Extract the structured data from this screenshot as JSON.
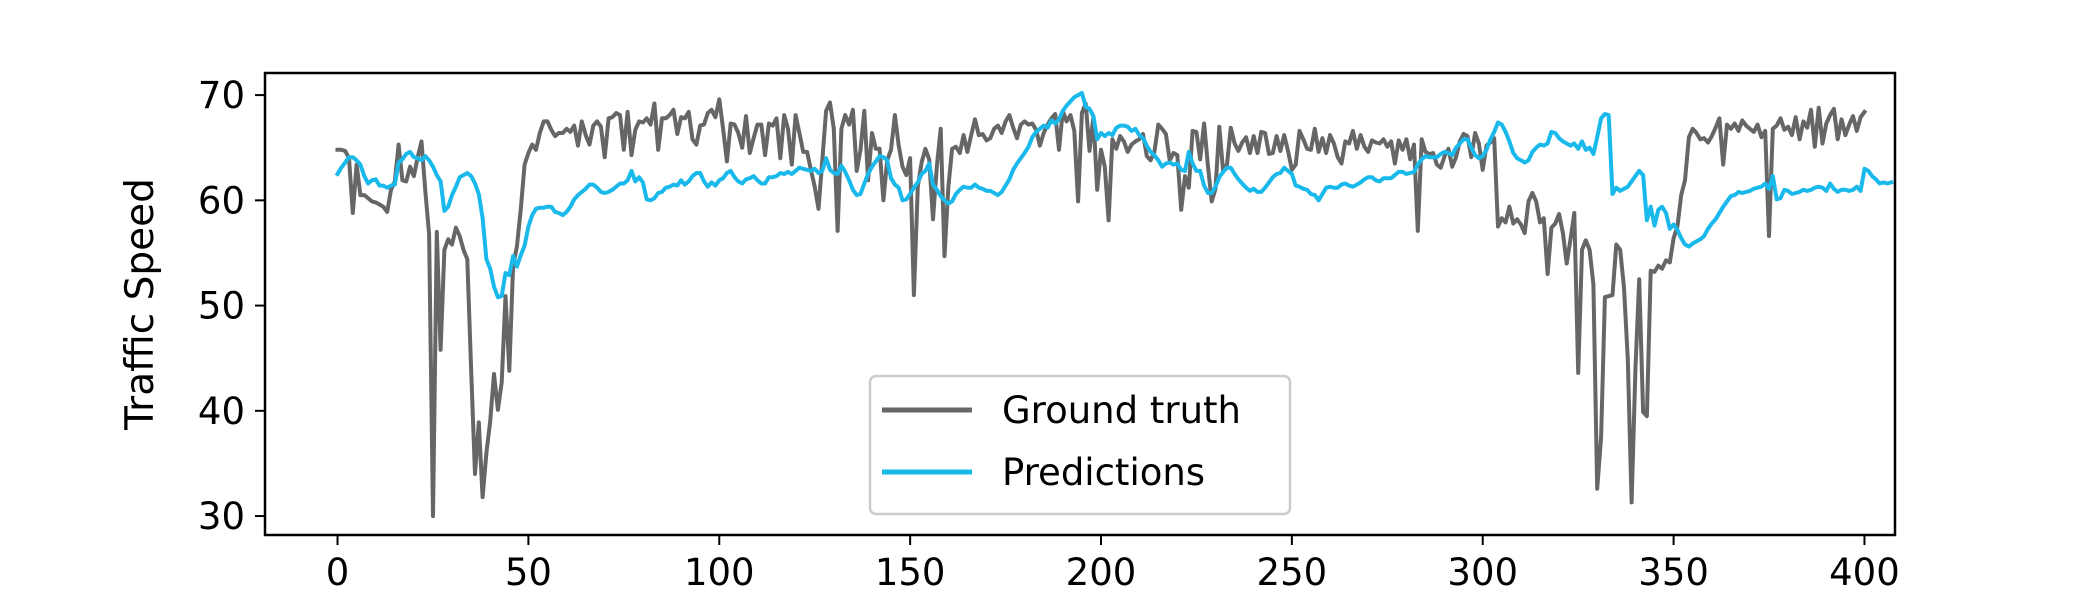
{
  "chart_data": {
    "type": "line",
    "title": "",
    "xlabel": "",
    "ylabel": "Traffic Speed",
    "xlim": [
      -19,
      408
    ],
    "ylim": [
      28.2,
      72.1
    ],
    "xticks": [
      0,
      50,
      100,
      150,
      200,
      250,
      300,
      350,
      400
    ],
    "yticks": [
      30,
      40,
      50,
      60,
      70
    ],
    "grid": false,
    "legend": {
      "position": "bottom-center",
      "entries": [
        "Ground truth",
        "Predictions"
      ]
    },
    "colors": {
      "Ground truth": "#666666",
      "Predictions": "#1ab9ec"
    },
    "x_step": 1,
    "series": [
      {
        "name": "Ground truth",
        "color": "#666666",
        "values": [
          64.8,
          64.8,
          64.7,
          64,
          58.8,
          63.4,
          60.5,
          60.5,
          60.2,
          59.9,
          59.8,
          59.6,
          59.4,
          58.9,
          61,
          61.8,
          65.3,
          61.9,
          61.8,
          63.2,
          62.3,
          64.1,
          65.6,
          60.9,
          56.8,
          30,
          57,
          45.8,
          55.3,
          56.3,
          55.8,
          57.4,
          56.6,
          55.3,
          54.4,
          44,
          34,
          38.9,
          31.8,
          36,
          39,
          43.5,
          40.1,
          42.7,
          50.9,
          43.8,
          53.8,
          55.6,
          59.2,
          63.4,
          64.5,
          65.3,
          64.8,
          66.4,
          67.5,
          67.5,
          66.7,
          66.1,
          66.4,
          66.4,
          66.8,
          66.5,
          67.1,
          65.2,
          67.5,
          66.2,
          65.3,
          67.1,
          67.5,
          67,
          64.1,
          67.8,
          67.9,
          68.3,
          68.1,
          64.8,
          68.4,
          64.3,
          66.7,
          67.5,
          67.4,
          67.8,
          67.2,
          69.2,
          64.8,
          67.8,
          67.8,
          68.1,
          68.6,
          66.3,
          67.9,
          67.8,
          68.4,
          65.8,
          65.3,
          67.1,
          67.2,
          68.3,
          68.6,
          67.9,
          69.6,
          66.8,
          63.7,
          67.3,
          67.2,
          66.4,
          65,
          68,
          64.5,
          65.9,
          67.2,
          67.2,
          64.3,
          67.3,
          67.1,
          67.8,
          64,
          68.1,
          66.8,
          63.4,
          68.1,
          66.4,
          64.6,
          64.6,
          62.9,
          61.3,
          59.2,
          63.8,
          68.5,
          69.3,
          66.8,
          57.1,
          66.8,
          68.1,
          67.2,
          68.6,
          62.8,
          64.8,
          68.5,
          61.9,
          66.4,
          64.9,
          64.9,
          60,
          63.8,
          64.8,
          68.1,
          65.2,
          63.2,
          62.4,
          64,
          51,
          61.3,
          63.6,
          64.9,
          63.9,
          58.2,
          63.3,
          66.8,
          54.7,
          61.2,
          64.9,
          65.1,
          64.5,
          66.2,
          64.6,
          66.2,
          67.7,
          66.2,
          66.3,
          65.7,
          65.9,
          66.8,
          67.1,
          66.4,
          67.5,
          68.1,
          66.9,
          65.9,
          67.2,
          67.5,
          67.2,
          67.3,
          66.7,
          65.2,
          66.4,
          67.2,
          67.8,
          68.2,
          64.8,
          68.5,
          67.5,
          68.1,
          66.6,
          59.9,
          68.3,
          69.2,
          64.7,
          67.9,
          61,
          64.8,
          63.2,
          58.1,
          65.8,
          64.9,
          66.1,
          65.6,
          64.6,
          65.3,
          65.6,
          65.8,
          66.3,
          64.2,
          63.8,
          64.6,
          67.2,
          66.8,
          66.3,
          63.8,
          64.5,
          64.3,
          59.1,
          62.3,
          61.2,
          66.6,
          66.5,
          63.9,
          67.3,
          63.3,
          59.9,
          61.1,
          67,
          62.8,
          63.4,
          66.9,
          65.4,
          64.7,
          65.5,
          66,
          64.5,
          66.1,
          64.5,
          66.5,
          66.4,
          64.4,
          64.5,
          66.1,
          64.7,
          66.2,
          64.7,
          62.9,
          63.4,
          66.6,
          65.8,
          64.9,
          64.8,
          66.8,
          64.6,
          65.9,
          64.5,
          66.2,
          65.4,
          64.1,
          63.5,
          65.6,
          65.4,
          66.6,
          64.9,
          66.2,
          65.1,
          64.6,
          65.7,
          65.5,
          65.4,
          65.8,
          65.1,
          65.6,
          63.5,
          65.7,
          64.8,
          65.8,
          63.9,
          65.3,
          57.1,
          65.8,
          64.6,
          64.4,
          64.5,
          63.4,
          63.1,
          64.2,
          64.9,
          63.2,
          64.1,
          65.6,
          66.3,
          66.1,
          64.1,
          66.4,
          65.4,
          62.9,
          65.2,
          65.5,
          65.9,
          57.5,
          58.3,
          57.9,
          59.4,
          57.8,
          58.2,
          57.7,
          56.9,
          59.9,
          60.7,
          59.9,
          57.9,
          58.3,
          53,
          57.4,
          57.8,
          58.7,
          56.9,
          54,
          56.3,
          58.8,
          43.6,
          55.3,
          56.2,
          55.3,
          52,
          32.6,
          37.5,
          50.8,
          50.9,
          51,
          55.8,
          55.3,
          51.7,
          44.9,
          31.3,
          43.9,
          52.5,
          39.9,
          39.5,
          53.3,
          53.2,
          53.8,
          53.5,
          54.3,
          54.1,
          56.4,
          57.5,
          60.5,
          61.9,
          66,
          66.8,
          66.4,
          65.8,
          65.9,
          65.5,
          66.1,
          66.9,
          67.8,
          63.4,
          67.2,
          66.8,
          67.3,
          66.6,
          67.6,
          67.1,
          66.8,
          66.5,
          67.2,
          66,
          66.6,
          56.6,
          66.8,
          67.1,
          67.8,
          66.7,
          67,
          66.2,
          67.9,
          65.8,
          67.5,
          66.9,
          68.6,
          65.1,
          68.8,
          65.4,
          67.3,
          68.1,
          68.7,
          65.8,
          67.7,
          66.2,
          67.2,
          68,
          66.6,
          67.9,
          68.4
        ]
      },
      {
        "name": "Predictions",
        "color": "#1ab9ec",
        "values": [
          62.5,
          63.1,
          63.6,
          64.1,
          64.1,
          63.8,
          63.4,
          62.3,
          61.6,
          61.9,
          62,
          61.4,
          61.4,
          61.2,
          61.4,
          61.5,
          63.6,
          63.9,
          64.4,
          64.6,
          64.1,
          64,
          63.8,
          64.2,
          63.8,
          63.2,
          62.4,
          61.8,
          59,
          59.4,
          60.5,
          61.3,
          62.2,
          62.4,
          62.6,
          62.3,
          61.6,
          60.6,
          58.3,
          54.4,
          53.5,
          51.8,
          50.8,
          50.9,
          53.1,
          52.9,
          54.7,
          53.7,
          54.8,
          55.7,
          57.5,
          58.6,
          59.2,
          59.3,
          59.3,
          59.4,
          59.4,
          58.9,
          58.8,
          58.6,
          58.9,
          59.4,
          60.1,
          60.5,
          60.8,
          61.1,
          61.5,
          61.5,
          61.2,
          60.8,
          60.7,
          60.8,
          61,
          61.3,
          61.6,
          61.6,
          61.9,
          62.8,
          61.8,
          62.2,
          61.7,
          60.1,
          60,
          60.2,
          60.7,
          60.8,
          61.2,
          61.3,
          61.5,
          61.4,
          61.9,
          61.5,
          61.8,
          62.3,
          62.6,
          62.6,
          61.8,
          61.3,
          61.7,
          61.4,
          61.9,
          62.1,
          62.6,
          62.8,
          62.2,
          61.8,
          61.6,
          62,
          62.1,
          62.3,
          61.9,
          61.6,
          61.6,
          62.2,
          62.2,
          62.3,
          62.6,
          62.5,
          62.7,
          62.5,
          62.8,
          63.1,
          63,
          62.9,
          62.8,
          63,
          62.6,
          62.8,
          64,
          62.9,
          62.6,
          62.5,
          63.3,
          62.7,
          61.9,
          61,
          60.5,
          60.6,
          61.6,
          62.5,
          63.2,
          63.7,
          64.2,
          64.1,
          63.8,
          62.1,
          61.5,
          61.2,
          60,
          60.1,
          60.6,
          61.2,
          61.7,
          62.5,
          62.8,
          63.5,
          61.5,
          61,
          60.4,
          60,
          59.7,
          59.9,
          60.6,
          61,
          61.3,
          61.2,
          61.2,
          61.5,
          61.2,
          61.1,
          60.9,
          60.9,
          60.7,
          60.5,
          60.8,
          61.4,
          62,
          62.9,
          63.5,
          64,
          64.5,
          65.1,
          66,
          66.5,
          66.8,
          67.1,
          66.9,
          67.6,
          67.3,
          67.7,
          68.5,
          69,
          69.4,
          69.8,
          70,
          70.2,
          68.9,
          68.7,
          68,
          65.8,
          66.4,
          66.1,
          66.4,
          66.2,
          66.9,
          67.1,
          67.1,
          67,
          66.6,
          66.8,
          66.2,
          65.9,
          65.2,
          64.6,
          64.3,
          63.8,
          63.2,
          63.5,
          63.6,
          63.4,
          63.5,
          62.9,
          62.8,
          64.6,
          63.5,
          62.8,
          62.8,
          61.4,
          60.7,
          60.7,
          61.3,
          62.2,
          62.7,
          63.1,
          63.1,
          62.5,
          62,
          61.6,
          61.2,
          60.9,
          61.1,
          60.8,
          60.8,
          61.2,
          61.7,
          62.2,
          62.5,
          62.6,
          63.1,
          62.8,
          62.5,
          61.4,
          61.3,
          61.1,
          61,
          60.6,
          60.5,
          60,
          60.6,
          61.2,
          61.3,
          61.2,
          61.2,
          61.5,
          61.6,
          61.4,
          61.3,
          61.5,
          61.7,
          62,
          62.2,
          62.2,
          61.9,
          61.8,
          62.1,
          62.1,
          62.1,
          62.4,
          62.7,
          62.7,
          62.5,
          62.6,
          62.7,
          63.4,
          63.9,
          64.2,
          64.1,
          64.1,
          64.1,
          64.4,
          64.6,
          64.5,
          64.3,
          65,
          65.4,
          65.8,
          65.8,
          65,
          64.3,
          64,
          64.2,
          64.8,
          65.8,
          66.5,
          67.4,
          67.2,
          66.5,
          65.6,
          64.5,
          64,
          63.8,
          63.6,
          63.8,
          64.6,
          65,
          65.3,
          65.2,
          65.4,
          66.5,
          66.4,
          65.9,
          65.6,
          65.4,
          65.2,
          65.4,
          64.9,
          65.6,
          64.8,
          65,
          64.4,
          66,
          67.8,
          68.2,
          68.1,
          60.6,
          61.2,
          60.9,
          61.1,
          61.3,
          61.8,
          62.3,
          62.8,
          62.4,
          58.1,
          59.4,
          57.6,
          59.1,
          59.4,
          58.8,
          57.3,
          57.7,
          57.2,
          56.4,
          55.8,
          55.6,
          55.9,
          56.1,
          56.3,
          56.6,
          57.3,
          57.8,
          58.2,
          58.8,
          59.4,
          59.9,
          60.4,
          60.5,
          60.8,
          60.7,
          60.8,
          60.9,
          61.1,
          61.2,
          61.3,
          61.6,
          61.1,
          62.3,
          60.1,
          60.2,
          61,
          60.9,
          60.6,
          60.7,
          60.8,
          61,
          60.9,
          61,
          61.2,
          61.3,
          61.2,
          60.9,
          61.6,
          61.1,
          60.8,
          61,
          61,
          60.9,
          61,
          61.3,
          60.9,
          63,
          62.8,
          62.3,
          62,
          61.6,
          61.7,
          61.6,
          61.7
        ]
      }
    ]
  }
}
